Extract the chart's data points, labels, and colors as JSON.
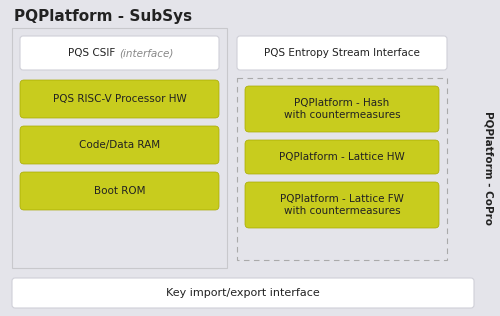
{
  "title": "PQPlatform - SubSys",
  "bg_color": "#e4e4ea",
  "white_box_color": "#ffffff",
  "yellow_color": "#c8cc1e",
  "edge_color_white": "#d0d0d0",
  "edge_color_yellow": "#a8aa00",
  "edge_color_dashed": "#aaaaaa",
  "text_color": "#222222",
  "gray_text_color": "#888888",
  "side_label": "PQPlatform - CoPro",
  "csif_label_main": "PQS CSIF ",
  "csif_label_italic": "(interface)",
  "left_yellow_labels": [
    "PQS RISC-V Processor HW",
    "Code/Data RAM",
    "Boot ROM"
  ],
  "right_white_label": "PQS Entropy Stream Interface",
  "right_yellow_labels": [
    "PQPlatform - Hash\nwith countermeasures",
    "PQPlatform - Lattice HW",
    "PQPlatform - Lattice FW\nwith countermeasures"
  ],
  "bottom_label": "Key import/export interface"
}
